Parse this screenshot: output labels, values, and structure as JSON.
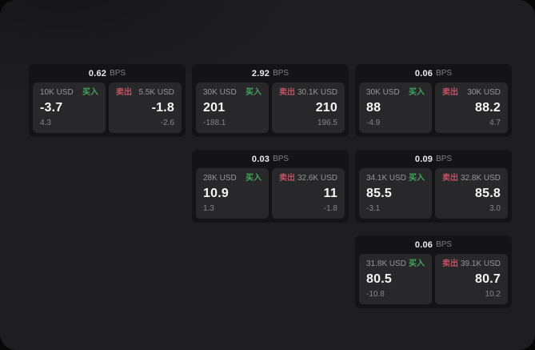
{
  "labels": {
    "unit": "BPS",
    "buy": "买入",
    "sell": "卖出"
  },
  "colors": {
    "buy": "#46a35f",
    "sell": "#bf5364",
    "card_bg": "#141416",
    "panel_bg": "#28282b",
    "page_bg": "#1e1e20"
  },
  "cards": [
    {
      "row": 1,
      "col": 1,
      "bps": "0.62",
      "buy": {
        "amount": "10K USD",
        "value": "-3.7",
        "sub": "4.3"
      },
      "sell": {
        "amount": "5.5K USD",
        "value": "-1.8",
        "sub": "-2.6"
      }
    },
    {
      "row": 1,
      "col": 2,
      "bps": "2.92",
      "buy": {
        "amount": "30K USD",
        "value": "201",
        "sub": "-188.1"
      },
      "sell": {
        "amount": "30.1K USD",
        "value": "210",
        "sub": "196.5"
      }
    },
    {
      "row": 1,
      "col": 3,
      "bps": "0.06",
      "buy": {
        "amount": "30K USD",
        "value": "88",
        "sub": "-4.9"
      },
      "sell": {
        "amount": "30K USD",
        "value": "88.2",
        "sub": "4.7"
      }
    },
    {
      "row": 2,
      "col": 2,
      "bps": "0.03",
      "buy": {
        "amount": "28K USD",
        "value": "10.9",
        "sub": "1.3"
      },
      "sell": {
        "amount": "32.6K USD",
        "value": "11",
        "sub": "-1.8"
      }
    },
    {
      "row": 2,
      "col": 3,
      "bps": "0.09",
      "buy": {
        "amount": "34.1K USD",
        "value": "85.5",
        "sub": "-3.1"
      },
      "sell": {
        "amount": "32.8K USD",
        "value": "85.8",
        "sub": "3.0"
      }
    },
    {
      "row": 3,
      "col": 3,
      "bps": "0.06",
      "buy": {
        "amount": "31.8K USD",
        "value": "80.5",
        "sub": "-10.8"
      },
      "sell": {
        "amount": "39.1K USD",
        "value": "80.7",
        "sub": "10.2"
      }
    }
  ]
}
